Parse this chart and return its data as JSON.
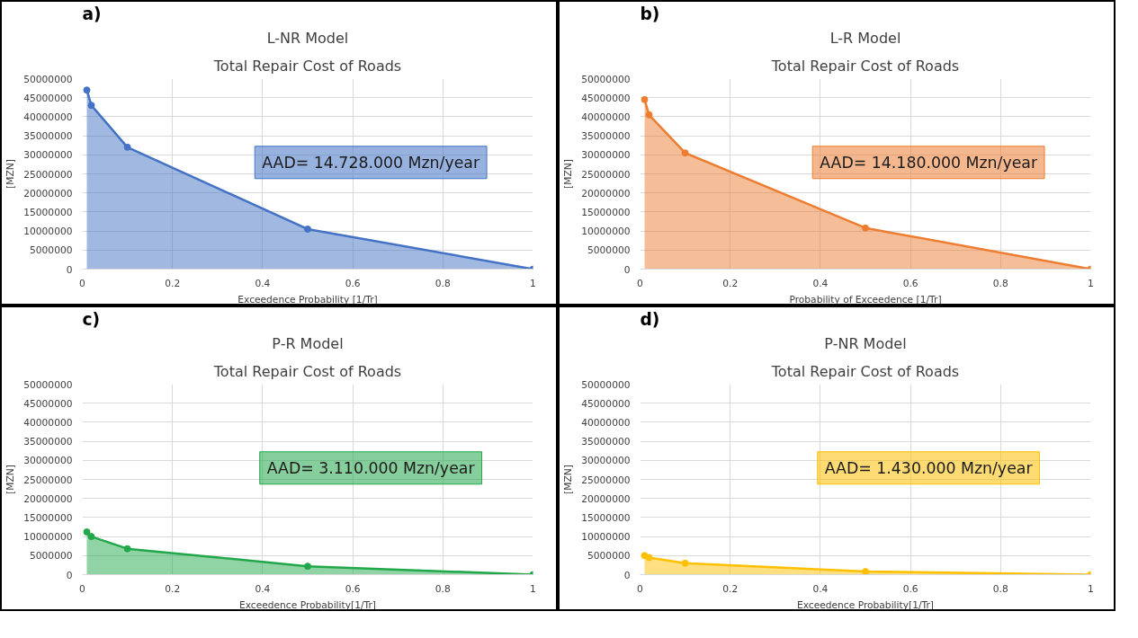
{
  "chart_data": [
    {
      "type": "area",
      "title": "L-NR Model",
      "subtitle": "Total Repair Cost of Roads",
      "xlabel": "Exceedence Probability [1/Tr]",
      "ylabel": "[MZN]",
      "annotations": [
        "a)",
        "AAD= 14.728.000 Mzn/year"
      ],
      "x": [
        0.01,
        0.02,
        0.1,
        0.5,
        1
      ],
      "series": [
        {
          "color": "#4472c4",
          "values": [
            47000000,
            43000000,
            32000000,
            10500000,
            0
          ]
        }
      ],
      "xlim": [
        0,
        1
      ],
      "ylim": [
        0,
        50000000
      ],
      "xticks": [
        0,
        0.2,
        0.4,
        0.6,
        0.8,
        1
      ],
      "yticks": [
        0,
        5000000,
        10000000,
        15000000,
        20000000,
        25000000,
        30000000,
        35000000,
        40000000,
        45000000,
        50000000
      ],
      "grid": true,
      "marker": "circle",
      "line_style": "solid"
    },
    {
      "type": "area",
      "title": "L-R Model",
      "subtitle": "Total Repair Cost of Roads",
      "xlabel": "Probability of Exceedence [1/Tr]",
      "ylabel": "[MZN]",
      "annotations": [
        "b)",
        "AAD= 14.180.000 Mzn/year"
      ],
      "x": [
        0.01,
        0.02,
        0.1,
        0.5,
        1
      ],
      "series": [
        {
          "color": "#ed7d31",
          "values": [
            44500000,
            40500000,
            30500000,
            10800000,
            0
          ]
        }
      ],
      "xlim": [
        0,
        1
      ],
      "ylim": [
        0,
        50000000
      ],
      "xticks": [
        0,
        0.2,
        0.4,
        0.6,
        0.8,
        1
      ],
      "yticks": [
        0,
        5000000,
        10000000,
        15000000,
        20000000,
        25000000,
        30000000,
        35000000,
        40000000,
        45000000,
        50000000
      ],
      "grid": true,
      "marker": "circle",
      "line_style": "solid"
    },
    {
      "type": "area",
      "title": "P-R Model",
      "subtitle": "Total Repair Cost of Roads",
      "xlabel": "Exceedence Probability[1/Tr]",
      "ylabel": "[MZN]",
      "annotations": [
        "c)",
        "AAD= 3.110.000 Mzn/year"
      ],
      "x": [
        0.01,
        0.02,
        0.1,
        0.5,
        1
      ],
      "series": [
        {
          "color": "#22a84a",
          "values": [
            11200000,
            10000000,
            6800000,
            2200000,
            0
          ]
        }
      ],
      "xlim": [
        0,
        1
      ],
      "ylim": [
        0,
        50000000
      ],
      "xticks": [
        0,
        0.2,
        0.4,
        0.6,
        0.8,
        1
      ],
      "yticks": [
        0,
        5000000,
        10000000,
        15000000,
        20000000,
        25000000,
        30000000,
        35000000,
        40000000,
        45000000,
        50000000
      ],
      "grid": true,
      "marker": "circle",
      "line_style": "solid"
    },
    {
      "type": "area",
      "title": "P-NR Model",
      "subtitle": "Total Repair Cost of Roads",
      "xlabel": "Exceedence Probability[1/Tr]",
      "ylabel": "[MZN]",
      "annotations": [
        "d)",
        "AAD= 1.430.000 Mzn/year"
      ],
      "x": [
        0.01,
        0.02,
        0.1,
        0.5,
        1
      ],
      "series": [
        {
          "color": "#ffc000",
          "values": [
            5000000,
            4500000,
            3000000,
            800000,
            0
          ]
        }
      ],
      "xlim": [
        0,
        1
      ],
      "ylim": [
        0,
        50000000
      ],
      "xticks": [
        0,
        0.2,
        0.4,
        0.6,
        0.8,
        1
      ],
      "yticks": [
        0,
        5000000,
        10000000,
        15000000,
        20000000,
        25000000,
        30000000,
        35000000,
        40000000,
        45000000,
        50000000
      ],
      "grid": true,
      "marker": "circle",
      "line_style": "solid"
    }
  ]
}
